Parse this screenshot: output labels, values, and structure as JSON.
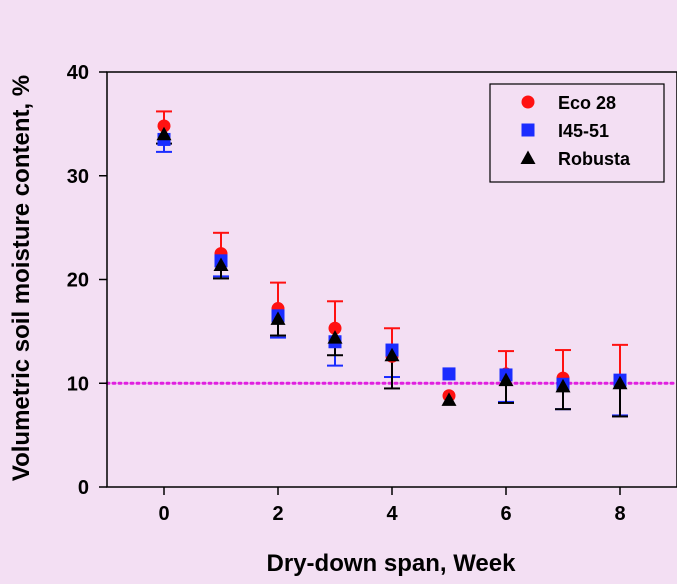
{
  "chart_data": {
    "type": "scatter",
    "xlabel": "Dry-down span, Week",
    "ylabel": "Volumetric soil moisture content, %",
    "xlim": [
      -1,
      9
    ],
    "ylim": [
      0,
      40
    ],
    "x_ticks": [
      0,
      2,
      4,
      6,
      8
    ],
    "x_tick_labels": [
      "0",
      "2",
      "4",
      "6",
      "8"
    ],
    "y_ticks": [
      0,
      10,
      20,
      30,
      40
    ],
    "y_tick_labels": [
      "0",
      "10",
      "20",
      "30",
      "40"
    ],
    "grid": false,
    "legend_position": "top-right",
    "reference_line": {
      "y": 10,
      "color": "#e020e0",
      "style": "dotted"
    },
    "series": [
      {
        "name": "Eco 28",
        "marker": "circle",
        "color": "#ff1111",
        "points": [
          {
            "x": 0,
            "y": 34.8,
            "err_up": 1.4
          },
          {
            "x": 1,
            "y": 22.5,
            "err_up": 2.0
          },
          {
            "x": 2,
            "y": 17.2,
            "err_up": 2.5
          },
          {
            "x": 3,
            "y": 15.3,
            "err_up": 2.6
          },
          {
            "x": 4,
            "y": 12.6,
            "err_up": 2.7
          },
          {
            "x": 5,
            "y": 8.8,
            "err_up": 0
          },
          {
            "x": 6,
            "y": 10.9,
            "err_up": 2.2
          },
          {
            "x": 7,
            "y": 10.5,
            "err_up": 2.7
          },
          {
            "x": 8,
            "y": 10.1,
            "err_up": 3.6
          }
        ]
      },
      {
        "name": "I45-51",
        "marker": "square",
        "color": "#1a2cff",
        "points": [
          {
            "x": 0,
            "y": 33.5,
            "err_down": 1.2
          },
          {
            "x": 1,
            "y": 21.8,
            "err_down": 1.5
          },
          {
            "x": 2,
            "y": 16.5,
            "err_down": 2.1
          },
          {
            "x": 3,
            "y": 14.0,
            "err_down": 2.3
          },
          {
            "x": 4,
            "y": 13.2,
            "err_down": 2.6
          },
          {
            "x": 5,
            "y": 10.9,
            "err_down": 0
          },
          {
            "x": 6,
            "y": 10.8,
            "err_down": 2.6
          },
          {
            "x": 7,
            "y": 9.9,
            "err_down": 2.4
          },
          {
            "x": 8,
            "y": 10.3,
            "err_down": 3.4
          }
        ]
      },
      {
        "name": "Robusta",
        "marker": "triangle",
        "color": "#000000",
        "points": [
          {
            "x": 0,
            "y": 34.0,
            "err_down": 0.9
          },
          {
            "x": 1,
            "y": 21.4,
            "err_down": 1.3
          },
          {
            "x": 2,
            "y": 16.2,
            "err_down": 1.6
          },
          {
            "x": 3,
            "y": 14.4,
            "err_down": 1.7
          },
          {
            "x": 4,
            "y": 12.7,
            "err_down": 3.2
          },
          {
            "x": 5,
            "y": 8.4,
            "err_down": 0
          },
          {
            "x": 6,
            "y": 10.3,
            "err_down": 2.2
          },
          {
            "x": 7,
            "y": 9.7,
            "err_down": 2.2
          },
          {
            "x": 8,
            "y": 10.0,
            "err_down": 3.2
          }
        ]
      }
    ]
  }
}
